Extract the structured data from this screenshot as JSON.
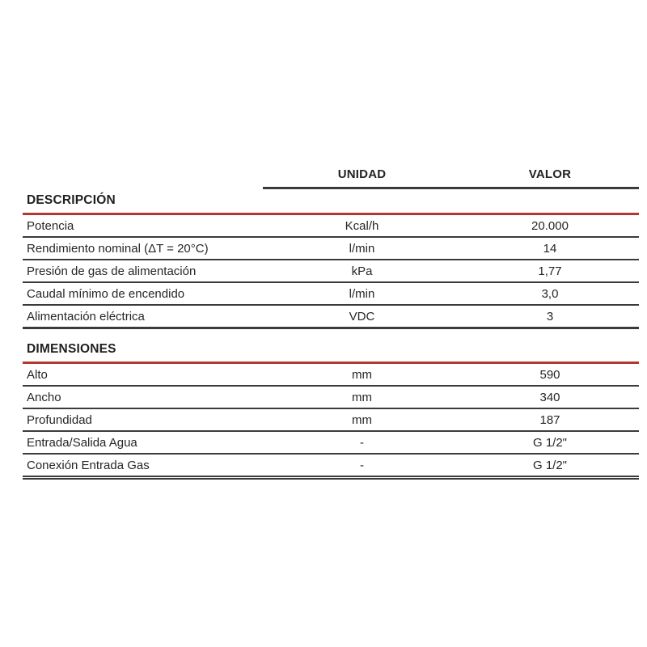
{
  "page": {
    "background_color": "#ffffff",
    "text_color": "#262626",
    "rule_dark_color": "#3b3b3b",
    "rule_red_color": "#b23832"
  },
  "spec_table": {
    "column_headers": {
      "unidad": "UNIDAD",
      "valor": "VALOR"
    },
    "sections": [
      {
        "title": "DESCRIPCIÓN",
        "rows": [
          {
            "label": "Potencia",
            "unidad": "Kcal/h",
            "valor": "20.000"
          },
          {
            "label": "Rendimiento nominal (ΔT = 20°C)",
            "unidad": "l/min",
            "valor": "14"
          },
          {
            "label": "Presión de gas de alimentación",
            "unidad": "kPa",
            "valor": "1,77"
          },
          {
            "label": "Caudal mínimo de encendido",
            "unidad": "l/min",
            "valor": "3,0"
          },
          {
            "label": "Alimentación eléctrica",
            "unidad": "VDC",
            "valor": "3"
          }
        ]
      },
      {
        "title": "DIMENSIONES",
        "rows": [
          {
            "label": "Alto",
            "unidad": "mm",
            "valor": "590"
          },
          {
            "label": "Ancho",
            "unidad": "mm",
            "valor": "340"
          },
          {
            "label": "Profundidad",
            "unidad": "mm",
            "valor": "187"
          },
          {
            "label": "Entrada/Salida Agua",
            "unidad": "-",
            "valor": "G 1/2\""
          },
          {
            "label": "Conexión Entrada Gas",
            "unidad": "-",
            "valor": "G 1/2\""
          }
        ]
      }
    ]
  }
}
